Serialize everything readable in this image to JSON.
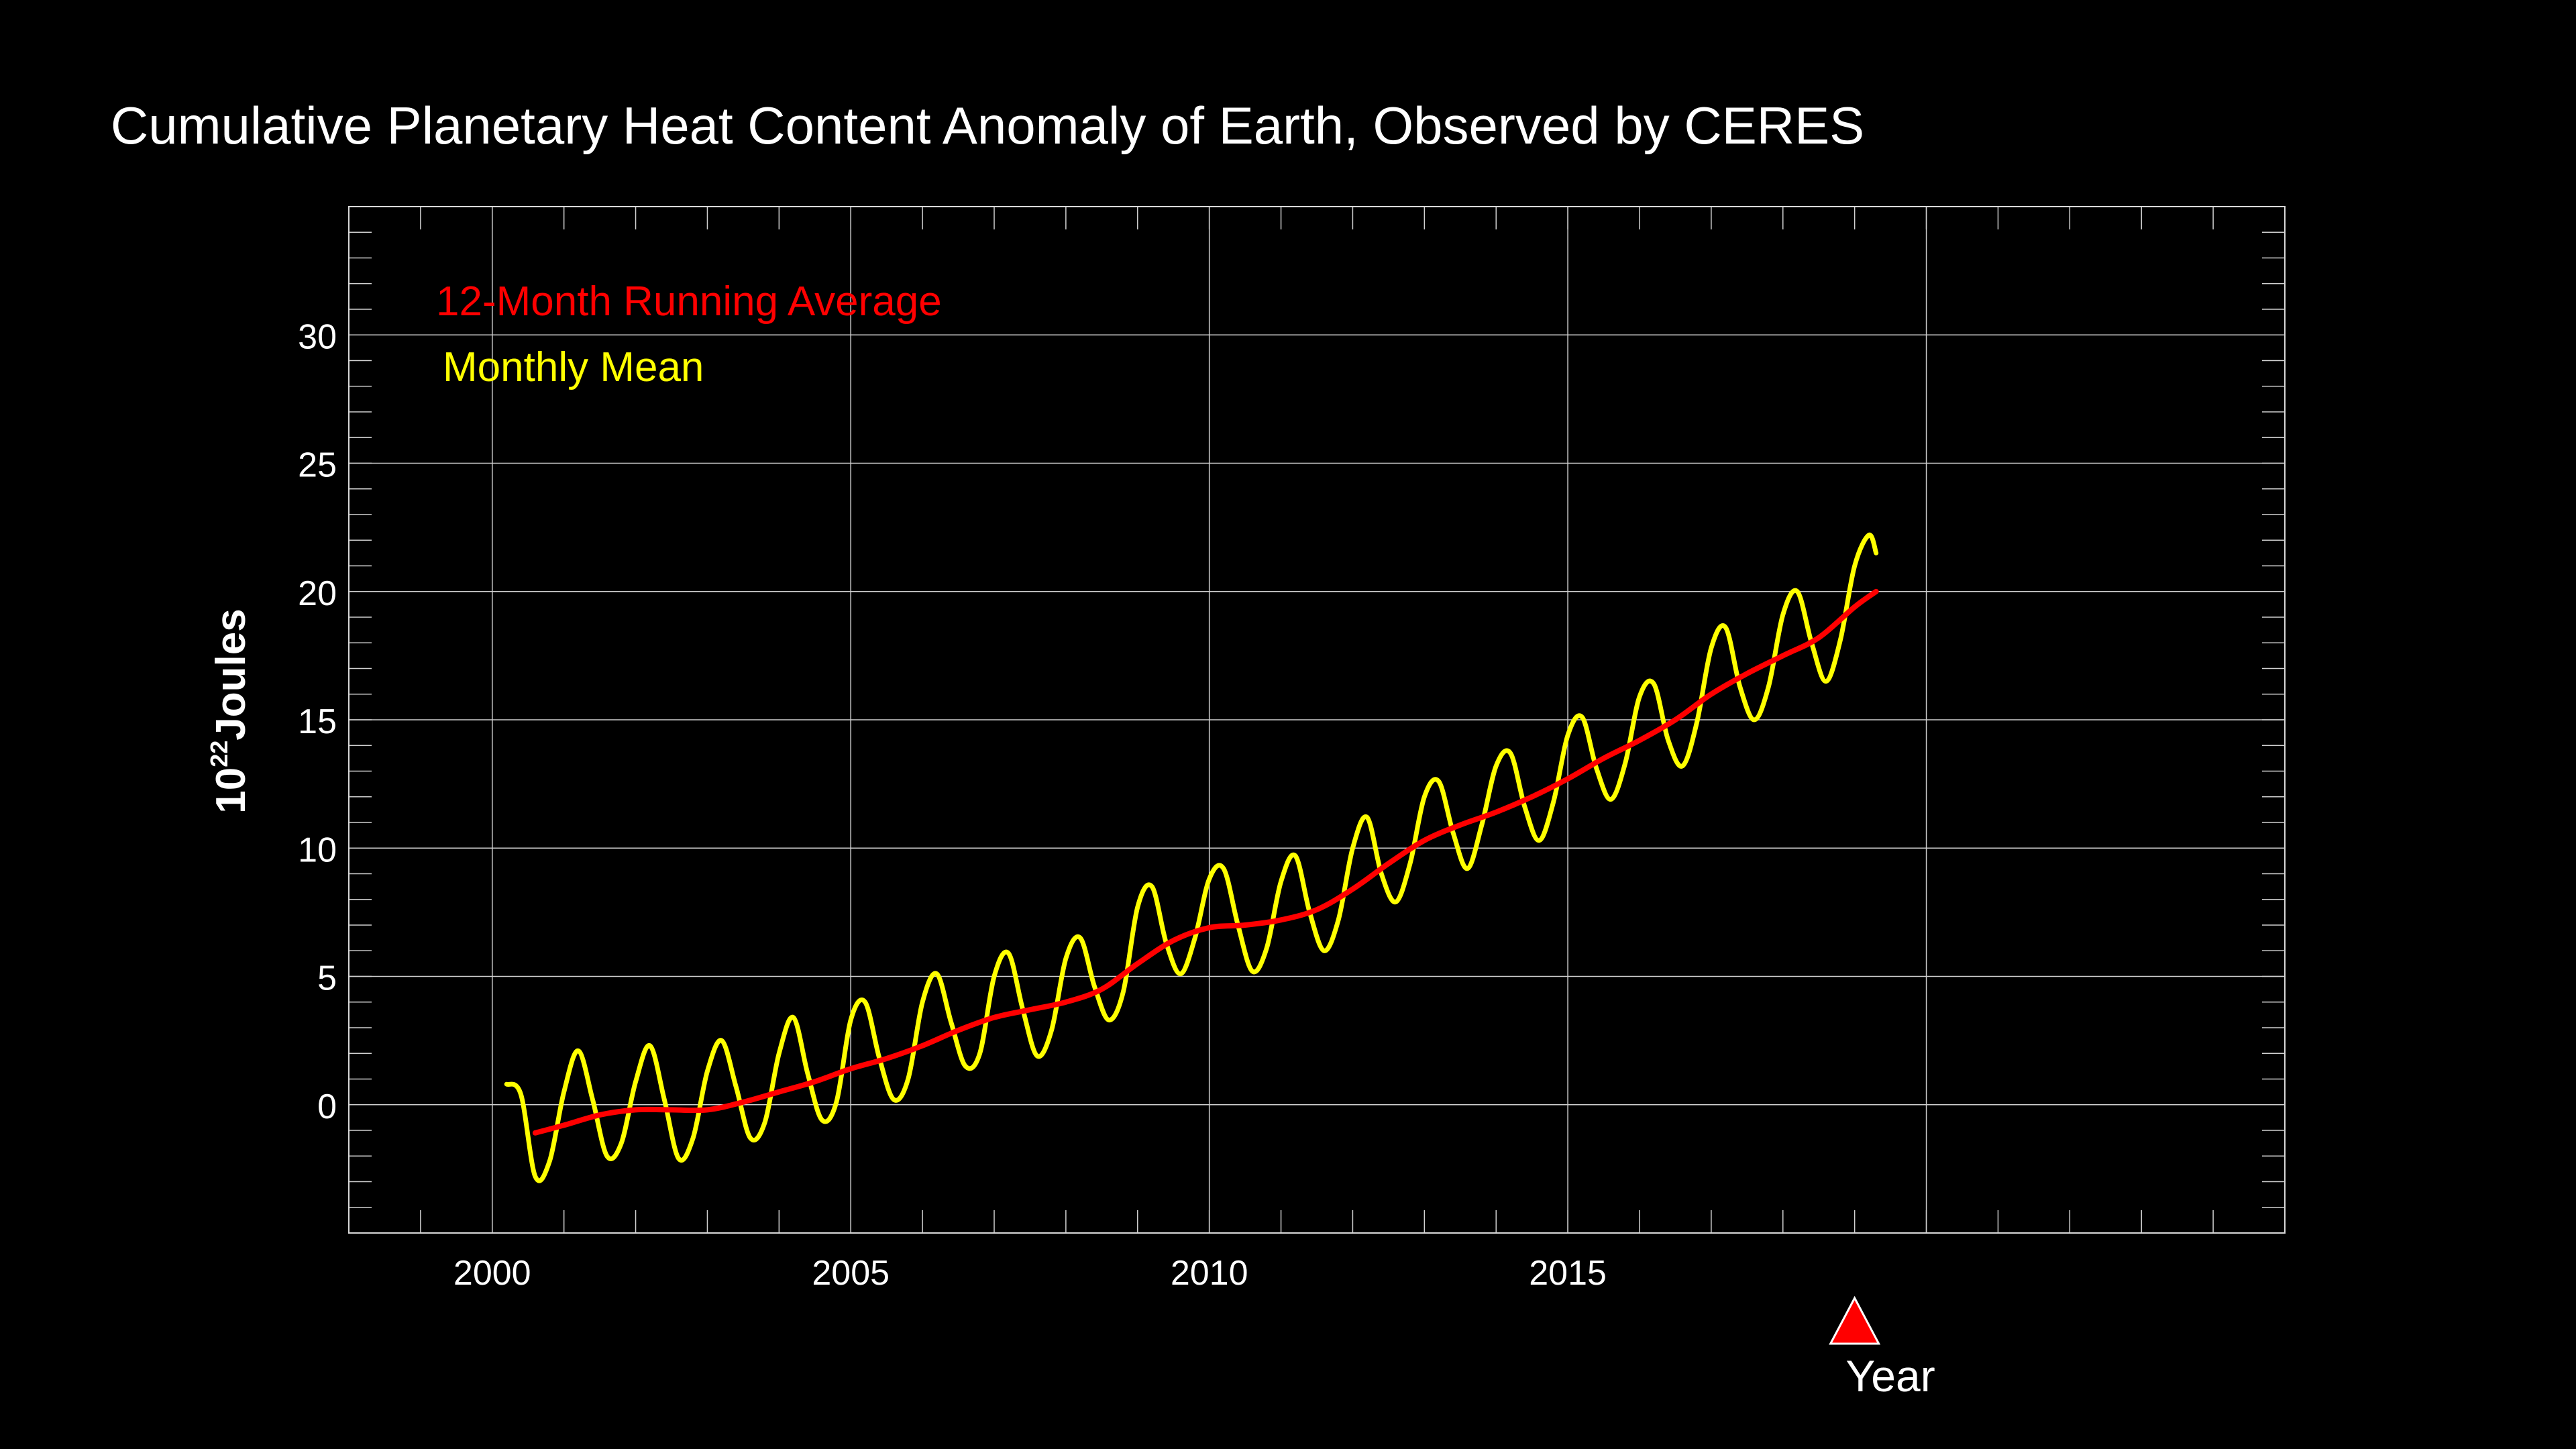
{
  "chart_data": {
    "type": "line",
    "title": "Cumulative Planetary Heat Content Anomaly of Earth, Observed by CERES",
    "xlabel": "Year",
    "ylabel": {
      "base": "10",
      "exponent": "22",
      "unit": "Joules"
    },
    "xlim": [
      1998,
      2025
    ],
    "ylim": [
      -5,
      35
    ],
    "x_ticks": [
      2000,
      2005,
      2010,
      2015
    ],
    "y_ticks": [
      0,
      5,
      10,
      15,
      20,
      25,
      30
    ],
    "grid": true,
    "legend_position": "top-left",
    "background_color": "#000000",
    "axis_color": "#ffffff",
    "marker": {
      "x": 2019.0,
      "shape": "triangle",
      "color": "#ff0000"
    },
    "series": [
      {
        "name": "12-Month Running Average",
        "color": "#ff0000",
        "x": [
          2000.6,
          2001.0,
          2001.5,
          2002.0,
          2002.5,
          2003.0,
          2003.5,
          2004.0,
          2004.5,
          2005.0,
          2005.5,
          2006.0,
          2006.5,
          2007.0,
          2007.5,
          2008.0,
          2008.5,
          2009.0,
          2009.5,
          2010.0,
          2010.5,
          2011.0,
          2011.5,
          2012.0,
          2012.5,
          2013.0,
          2013.5,
          2014.0,
          2014.5,
          2015.0,
          2015.5,
          2016.0,
          2016.5,
          2017.0,
          2017.5,
          2018.0,
          2018.5,
          2019.0,
          2019.3
        ],
        "values": [
          -1.1,
          -0.8,
          -0.4,
          -0.2,
          -0.2,
          -0.2,
          0.1,
          0.5,
          0.9,
          1.4,
          1.8,
          2.3,
          2.9,
          3.4,
          3.7,
          4.0,
          4.5,
          5.5,
          6.4,
          6.9,
          7.0,
          7.2,
          7.6,
          8.4,
          9.4,
          10.3,
          10.9,
          11.4,
          12.0,
          12.7,
          13.5,
          14.2,
          15.0,
          16.0,
          16.8,
          17.5,
          18.2,
          19.4,
          20.0
        ]
      },
      {
        "name": "Monthly Mean",
        "color": "#ffff00",
        "x": [
          2000.2,
          2000.4,
          2000.6,
          2000.8,
          2001.0,
          2001.2,
          2001.4,
          2001.6,
          2001.8,
          2002.0,
          2002.2,
          2002.4,
          2002.6,
          2002.8,
          2003.0,
          2003.2,
          2003.4,
          2003.6,
          2003.8,
          2004.0,
          2004.2,
          2004.4,
          2004.6,
          2004.8,
          2005.0,
          2005.2,
          2005.4,
          2005.6,
          2005.8,
          2006.0,
          2006.2,
          2006.4,
          2006.6,
          2006.8,
          2007.0,
          2007.2,
          2007.4,
          2007.6,
          2007.8,
          2008.0,
          2008.2,
          2008.4,
          2008.6,
          2008.8,
          2009.0,
          2009.2,
          2009.4,
          2009.6,
          2009.8,
          2010.0,
          2010.2,
          2010.4,
          2010.6,
          2010.8,
          2011.0,
          2011.2,
          2011.4,
          2011.6,
          2011.8,
          2012.0,
          2012.2,
          2012.4,
          2012.6,
          2012.8,
          2013.0,
          2013.2,
          2013.4,
          2013.6,
          2013.8,
          2014.0,
          2014.2,
          2014.4,
          2014.6,
          2014.8,
          2015.0,
          2015.2,
          2015.4,
          2015.6,
          2015.8,
          2016.0,
          2016.2,
          2016.4,
          2016.6,
          2016.8,
          2017.0,
          2017.2,
          2017.4,
          2017.6,
          2017.8,
          2018.0,
          2018.2,
          2018.4,
          2018.6,
          2018.8,
          2019.0,
          2019.2,
          2019.3
        ],
        "values": [
          0.8,
          0.4,
          -2.8,
          -2.2,
          0.5,
          2.1,
          0.2,
          -2.0,
          -1.5,
          0.9,
          2.3,
          0.2,
          -2.1,
          -1.3,
          1.3,
          2.5,
          0.7,
          -1.3,
          -0.7,
          2.0,
          3.4,
          1.2,
          -0.6,
          0.1,
          3.3,
          4.0,
          1.8,
          0.2,
          1.0,
          4.0,
          5.1,
          3.2,
          1.5,
          2.0,
          5.0,
          5.9,
          3.7,
          1.9,
          2.9,
          5.7,
          6.5,
          4.6,
          3.3,
          4.4,
          7.7,
          8.5,
          6.3,
          5.1,
          6.5,
          8.8,
          9.2,
          7.0,
          5.2,
          6.1,
          8.7,
          9.7,
          7.5,
          6.0,
          7.2,
          10.0,
          11.2,
          9.0,
          7.9,
          9.4,
          12.0,
          12.6,
          10.6,
          9.2,
          10.9,
          13.2,
          13.7,
          11.6,
          10.3,
          11.8,
          14.4,
          15.1,
          13.1,
          11.9,
          13.3,
          15.9,
          16.4,
          14.2,
          13.2,
          14.9,
          17.8,
          18.6,
          16.3,
          15.0,
          16.3,
          19.1,
          20.0,
          18.0,
          16.5,
          18.1,
          21.0,
          22.2,
          21.5
        ]
      }
    ]
  }
}
